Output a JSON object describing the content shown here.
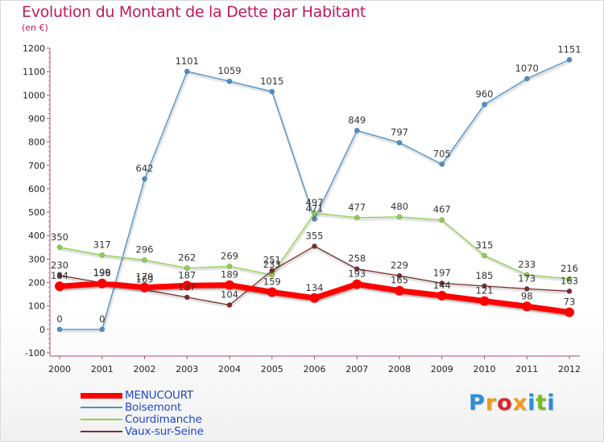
{
  "chart_data": {
    "type": "line",
    "title": "Evolution du Montant de la Dette par Habitant",
    "subtitle": "(en €)",
    "ylim": [
      -100,
      1200
    ],
    "yticks": [
      -100,
      0,
      100,
      200,
      300,
      400,
      500,
      600,
      700,
      800,
      900,
      1000,
      1100,
      1200
    ],
    "categories": [
      "2000",
      "2001",
      "2002",
      "2003",
      "2004",
      "2005",
      "2006",
      "2007",
      "2008",
      "2009",
      "2010",
      "2011",
      "2012"
    ],
    "grid": false,
    "legend_position": "bottom-left",
    "series": [
      {
        "name": "MENUCOURT",
        "color": "#ff0000",
        "values": [
          184,
          196,
          179,
          187,
          189,
          159,
          134,
          193,
          165,
          144,
          121,
          98,
          73
        ]
      },
      {
        "name": "Boisemont",
        "color": "#4a90c8",
        "values": [
          0,
          0,
          642,
          1101,
          1059,
          1015,
          471,
          849,
          797,
          705,
          960,
          1070,
          1151
        ]
      },
      {
        "name": "Courdimanche",
        "color": "#8fd14f",
        "values": [
          350,
          317,
          296,
          262,
          269,
          233,
          497,
          477,
          480,
          467,
          315,
          233,
          216
        ]
      },
      {
        "name": "Vaux-sur-Seine",
        "color": "#7a2d2d",
        "values": [
          230,
          199,
          169,
          137,
          104,
          251,
          355,
          258,
          229,
          197,
          185,
          173,
          163
        ]
      }
    ]
  },
  "logo": {
    "text": "Proxiti",
    "colors": [
      "#2a8fd6",
      "#f29a1d",
      "#d9262d",
      "#f29a1d",
      "#2a8fd6",
      "#7ab929",
      "#2a8fd6"
    ]
  }
}
